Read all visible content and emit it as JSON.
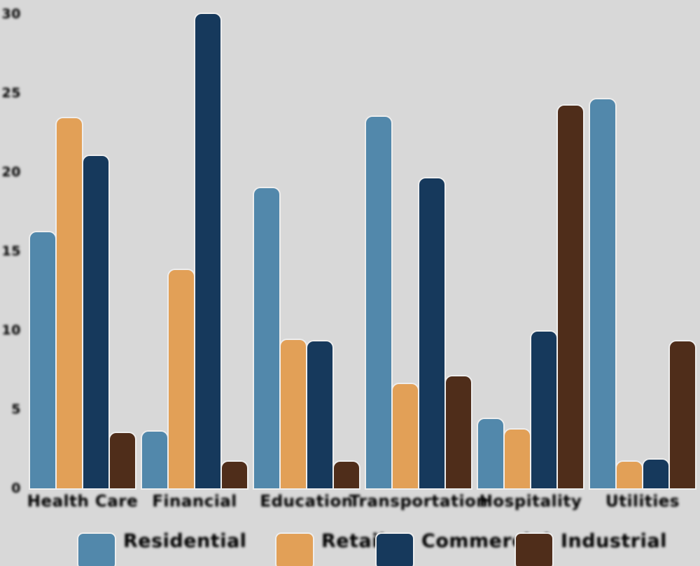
{
  "chart_data": {
    "type": "bar",
    "title": "",
    "xlabel": "",
    "ylabel": "",
    "categories": [
      "Health Care",
      "Financial",
      "Education",
      "Transportation",
      "Hospitality",
      "Utilities"
    ],
    "series": [
      {
        "name": "Residential",
        "color": "#5288ab",
        "values": [
          16.2,
          3.6,
          19.0,
          23.5,
          4.4,
          24.6
        ]
      },
      {
        "name": "Retail",
        "color": "#e2a057",
        "values": [
          23.4,
          13.8,
          9.4,
          6.6,
          3.7,
          1.7
        ]
      },
      {
        "name": "Commercial",
        "color": "#16395c",
        "values": [
          21.0,
          30.0,
          9.3,
          19.6,
          9.9,
          1.8
        ]
      },
      {
        "name": "Industrial",
        "color": "#4f2d1a",
        "values": [
          3.5,
          1.7,
          1.7,
          7.1,
          24.2,
          9.3
        ]
      }
    ],
    "ylim": [
      0,
      30
    ],
    "yticks": [
      0,
      5,
      10,
      15,
      20,
      25,
      30
    ],
    "grid": false,
    "legend_position": "bottom",
    "plot_background": "#d8d8d8",
    "text_color": "#000000"
  }
}
